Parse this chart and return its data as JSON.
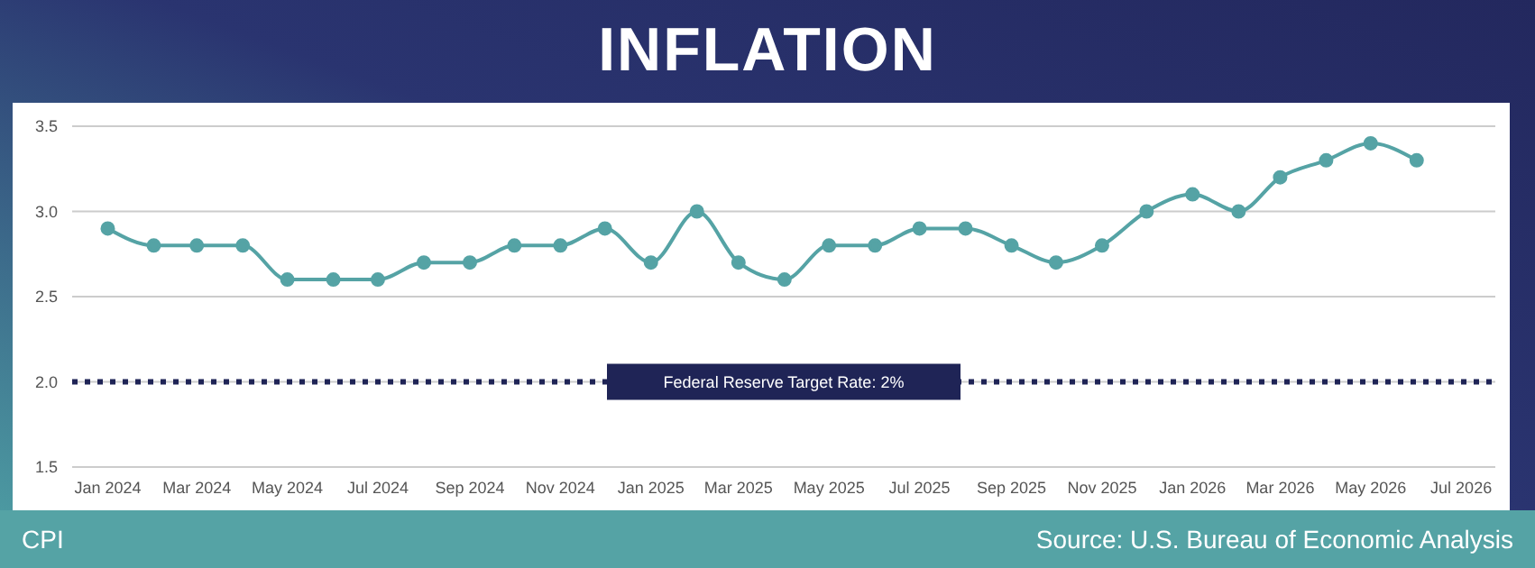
{
  "chart_data": {
    "type": "line",
    "title": "INFLATION",
    "annotations": [
      "CPI",
      "Source: U.S. Bureau of Economic Analysis"
    ],
    "x": [
      "2024-01",
      "2024-02",
      "2024-03",
      "2024-04",
      "2024-05",
      "2024-06",
      "2024-07",
      "2024-08",
      "2024-09",
      "2024-10",
      "2024-11",
      "2024-12",
      "2025-01",
      "2025-02",
      "2025-03",
      "2025-04",
      "2025-05",
      "2025-06",
      "2025-07",
      "2025-08",
      "2025-09",
      "2025-10",
      "2025-11",
      "2025-12",
      "2026-01",
      "2026-02",
      "2026-03",
      "2026-04",
      "2026-05",
      "2026-06"
    ],
    "series": [
      {
        "color": "#55a3a5",
        "values": [
          2.9,
          2.8,
          2.8,
          2.8,
          2.6,
          2.6,
          2.6,
          2.7,
          2.7,
          2.8,
          2.8,
          2.9,
          2.7,
          3.0,
          2.7,
          2.6,
          2.8,
          2.8,
          2.9,
          2.9,
          2.8,
          2.7,
          2.8,
          3.0,
          3.1,
          3.0,
          3.2,
          3.3,
          3.4,
          3.3
        ]
      }
    ],
    "xlim": [
      "2023-12-08",
      "2026-07-24"
    ],
    "xticks": [
      {
        "value": "2024-01",
        "label": "Jan 2024"
      },
      {
        "value": "2024-03",
        "label": "Mar 2024"
      },
      {
        "value": "2024-05",
        "label": "May 2024"
      },
      {
        "value": "2024-07",
        "label": "Jul 2024"
      },
      {
        "value": "2024-09",
        "label": "Sep 2024"
      },
      {
        "value": "2024-11",
        "label": "Nov 2024"
      },
      {
        "value": "2025-01",
        "label": "Jan 2025"
      },
      {
        "value": "2025-03",
        "label": "Mar 2025"
      },
      {
        "value": "2025-05",
        "label": "May 2025"
      },
      {
        "value": "2025-07",
        "label": "Jul 2025"
      },
      {
        "value": "2025-09",
        "label": "Sep 2025"
      },
      {
        "value": "2025-11",
        "label": "Nov 2025"
      },
      {
        "value": "2026-01",
        "label": "Jan 2026"
      },
      {
        "value": "2026-03",
        "label": "Mar 2026"
      },
      {
        "value": "2026-05",
        "label": "May 2026"
      },
      {
        "value": "2026-07",
        "label": "Jul 2026"
      }
    ],
    "ylim": [
      1.5,
      3.5
    ],
    "yticks": [
      1.5,
      {
        "value": 2,
        "label": "2.0"
      },
      2.5,
      {
        "value": 3,
        "label": "3.0"
      },
      3.5
    ],
    "ref_lines": [
      {
        "axis": "y",
        "value": 2,
        "label": "Federal Reserve Target Rate: 2%",
        "color": "#1f2456",
        "line_style": "dotted"
      }
    ],
    "grid": "y",
    "marker": "circle",
    "line_style": "solid"
  }
}
